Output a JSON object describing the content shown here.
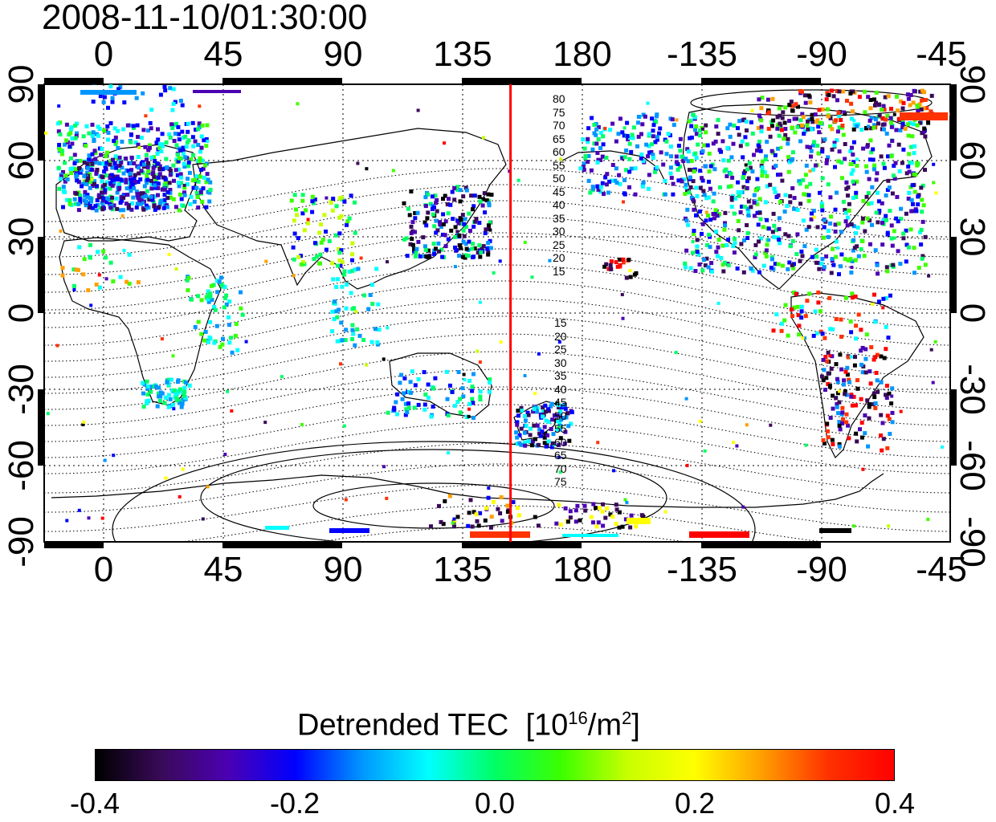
{
  "timestamp": "2008-11-10/01:30:00",
  "axes": {
    "x_ticks": [
      "0",
      "45",
      "90",
      "135",
      "180",
      "-135",
      "-90",
      "-45"
    ],
    "y_ticks": [
      "90",
      "60",
      "30",
      "0",
      "-30",
      "-60",
      "-90"
    ]
  },
  "contour_labels": {
    "north": [
      "80",
      "75",
      "70",
      "65",
      "60",
      "55",
      "50",
      "45",
      "40",
      "35",
      "30",
      "25",
      "20",
      "15"
    ],
    "south": [
      "15",
      "20",
      "25",
      "30",
      "35",
      "40",
      "45",
      "50",
      "55",
      "60",
      "65",
      "70",
      "75"
    ]
  },
  "colorbar": {
    "title_main": "Detrended TEC",
    "title_unit_open": "[10",
    "title_sup1": "16",
    "title_unit_mid": "/m",
    "title_sup2": "2",
    "title_unit_close": "]",
    "ticks": [
      "-0.4",
      "-0.2",
      "0.0",
      "0.2",
      "0.4"
    ],
    "range": [
      -0.4,
      0.4
    ],
    "colors": [
      "#000000",
      "#3a0a5a",
      "#4b00b4",
      "#0000ff",
      "#0096ff",
      "#00ffff",
      "#00ff64",
      "#3cff00",
      "#c8ff00",
      "#ffff00",
      "#ffa000",
      "#ff3200",
      "#ff0000"
    ]
  },
  "map": {
    "x_range": [
      -20,
      320
    ],
    "y_range": [
      -90,
      90
    ],
    "marker_longitude": 155,
    "marker_color": "#ff0000",
    "background": "#ffffff"
  }
}
